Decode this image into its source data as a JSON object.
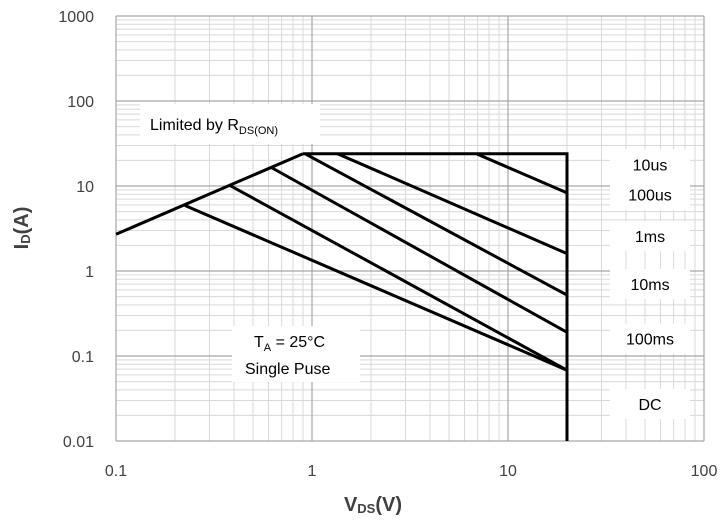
{
  "chart_data": {
    "type": "line",
    "title": "",
    "xscale": "log",
    "yscale": "log",
    "xlim": [
      0.1,
      100
    ],
    "ylim": [
      0.01,
      1000
    ],
    "grid": true,
    "x_ticks": [
      "0.1",
      "1",
      "10",
      "100"
    ],
    "y_ticks": [
      "0.01",
      "0.1",
      "1",
      "10",
      "100",
      "1000"
    ],
    "xlabel": {
      "main": "V",
      "sub": "DS",
      "unit": "(V)"
    },
    "ylabel": {
      "main": "I",
      "sub": "D",
      "unit": "(A)"
    },
    "rds_limit": {
      "x": [
        0.1,
        0.9
      ],
      "y": [
        2.7,
        24
      ]
    },
    "series": [
      {
        "name": "10us",
        "x": [
          6.9,
          20
        ],
        "y": [
          24,
          8.3
        ]
      },
      {
        "name": "100us",
        "x": [
          1.35,
          20
        ],
        "y": [
          24,
          1.6
        ]
      },
      {
        "name": "1ms",
        "x": [
          0.92,
          20
        ],
        "y": [
          24,
          0.52
        ]
      },
      {
        "name": "10ms",
        "x": [
          0.62,
          20
        ],
        "y": [
          16.5,
          0.19
        ]
      },
      {
        "name": "100ms",
        "x": [
          0.38,
          20
        ],
        "y": [
          10.2,
          0.068
        ]
      },
      {
        "name": "DC",
        "x": [
          0.225,
          20
        ],
        "y": [
          5.9,
          0.068
        ]
      }
    ],
    "envelope": {
      "x": [
        0.9,
        20,
        20
      ],
      "y": [
        24,
        24,
        0.01
      ]
    },
    "annotations": {
      "limit": {
        "main": "Limited by R",
        "sub": "DS(ON)"
      },
      "condition_line1": {
        "main": "T",
        "sub": "A",
        "rest": " = 25°C"
      },
      "condition_line2": "Single Puse"
    }
  }
}
